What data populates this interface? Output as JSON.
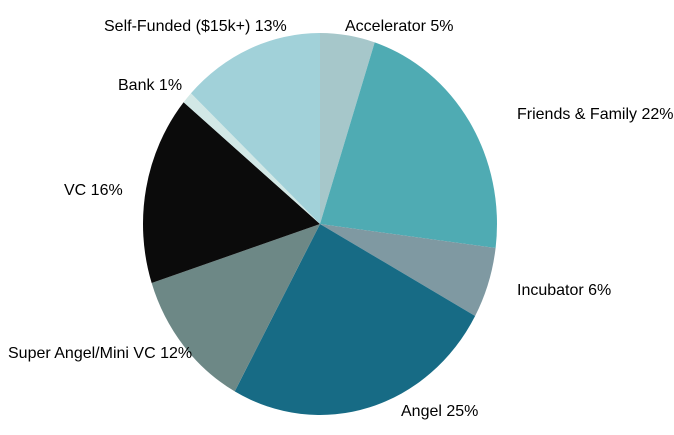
{
  "chart_data": {
    "type": "pie",
    "title": "",
    "legend_position": "labels-around-pie",
    "start_angle": "top-clockwise",
    "background_color": "#ffffff",
    "label_color": "#000000",
    "slices": [
      {
        "id": "accelerator",
        "label": "Accelerator",
        "value": 5,
        "display": "Accelerator 5%",
        "color": "#a6c7ca"
      },
      {
        "id": "friends-family",
        "label": "Friends & Family",
        "value": 22,
        "display": "Friends & Family 22%",
        "color": "#4fabb3"
      },
      {
        "id": "incubator",
        "label": "Incubator",
        "value": 6,
        "display": "Incubator 6%",
        "color": "#7f99a2"
      },
      {
        "id": "angel",
        "label": "Angel",
        "value": 25,
        "display": "Angel 25%",
        "color": "#176b85"
      },
      {
        "id": "super-angel",
        "label": "Super Angel/Mini VC",
        "value": 12,
        "display": "Super Angel/Mini VC 12%",
        "color": "#6d8886"
      },
      {
        "id": "vc",
        "label": "VC",
        "value": 16,
        "display": "VC 16%",
        "color": "#0b0b0b"
      },
      {
        "id": "bank",
        "label": "Bank",
        "value": 1,
        "display": "Bank 1%",
        "color": "#d2e8e6"
      },
      {
        "id": "self-funded",
        "label": "Self-Funded ($15k+)",
        "value": 13,
        "display": "Self-Funded ($15k+) 13%",
        "color": "#a1d1d9"
      }
    ]
  }
}
